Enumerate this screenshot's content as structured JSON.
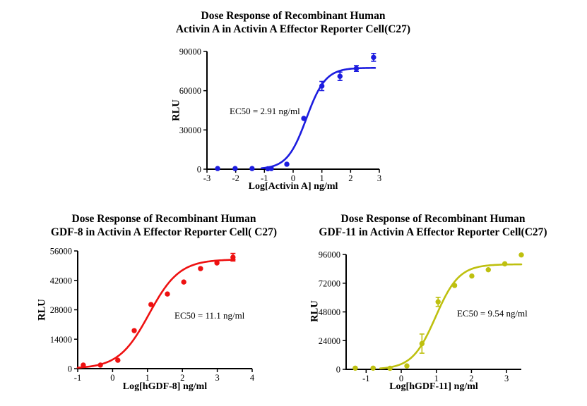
{
  "chart_data": [
    {
      "name": "activin-a",
      "type": "scatter",
      "title_line1": "Dose Response of Recombinant Human",
      "title_line2": "Activin A in Activin A Effector Reporter Cell(C27)",
      "xlabel": "Log[Activin A] ng/ml",
      "ylabel": "RLU",
      "ec50_label": "EC50 = 2.91 ng/ml",
      "ec50_value_ng_ml": 2.91,
      "color": "#1c1cdf",
      "grid": false,
      "x_range": [
        -3,
        3
      ],
      "x_ticks": [
        -3,
        -2,
        -1,
        0,
        1,
        2,
        3
      ],
      "y_range": [
        0,
        90000
      ],
      "y_ticks": [
        0,
        30000,
        60000,
        90000
      ],
      "points": [
        {
          "x": -2.63,
          "y": 500
        },
        {
          "x": -2.02,
          "y": 500
        },
        {
          "x": -1.43,
          "y": 500
        },
        {
          "x": -0.88,
          "y": 300
        },
        {
          "x": -0.76,
          "y": 500
        },
        {
          "x": -0.22,
          "y": 3800
        },
        {
          "x": 0.37,
          "y": 38800
        },
        {
          "x": 1.0,
          "y": 63600,
          "err": 3500
        },
        {
          "x": 1.63,
          "y": 71000,
          "err": 3200
        },
        {
          "x": 2.2,
          "y": 77000,
          "err": 2200
        },
        {
          "x": 2.8,
          "y": 85500,
          "err": 3000
        }
      ],
      "curve": {
        "bottom": 0,
        "top": 77500,
        "logec50": 0.46,
        "hill": 1.3,
        "x_start": -1.1,
        "x_end": 2.85
      }
    },
    {
      "name": "gdf-8",
      "type": "scatter",
      "title_line1": "Dose Response of Recombinant Human",
      "title_line2": "GDF-8 in Activin A Effector Reporter Cell( C27)",
      "xlabel": "Log[hGDF-8] ng/ml",
      "ylabel": "RLU",
      "ec50_label": "EC50 = 11.1 ng/ml",
      "ec50_value_ng_ml": 11.1,
      "color": "#ee1111",
      "grid": false,
      "x_range": [
        -1,
        4
      ],
      "x_ticks": [
        -1,
        0,
        1,
        2,
        3,
        4
      ],
      "y_range": [
        0,
        56000
      ],
      "y_ticks": [
        0,
        14000,
        28000,
        42000,
        56000
      ],
      "points": [
        {
          "x": -0.84,
          "y": 1700
        },
        {
          "x": -0.35,
          "y": 1700
        },
        {
          "x": 0.15,
          "y": 4000
        },
        {
          "x": 0.62,
          "y": 18100
        },
        {
          "x": 1.1,
          "y": 30500
        },
        {
          "x": 1.57,
          "y": 35500
        },
        {
          "x": 2.04,
          "y": 41200
        },
        {
          "x": 2.52,
          "y": 47600
        },
        {
          "x": 2.99,
          "y": 50300
        },
        {
          "x": 3.45,
          "y": 53000,
          "err": 1800
        }
      ],
      "curve": {
        "bottom": 0,
        "top": 52000,
        "logec50": 1.045,
        "hill": 1.0,
        "x_start": -1.0,
        "x_end": 3.5
      }
    },
    {
      "name": "gdf-11",
      "type": "scatter",
      "title_line1": "Dose Response of Recombinant Human",
      "title_line2": "GDF-11 in Activin A Effector Reporter Cell(C27)",
      "xlabel": "Log[hGDF-11] ng/ml",
      "ylabel": "RLU",
      "ec50_label": "EC50 = 9.54 ng/ml",
      "ec50_value_ng_ml": 9.54,
      "color": "#bec00f",
      "grid": false,
      "x_range": [
        -1.57,
        3.42
      ],
      "x_ticks": [
        -1,
        0,
        1,
        2,
        3
      ],
      "y_range": [
        0,
        96000
      ],
      "y_ticks": [
        0,
        24000,
        48000,
        72000,
        96000
      ],
      "points": [
        {
          "x": -1.31,
          "y": 1000
        },
        {
          "x": -0.8,
          "y": 1000
        },
        {
          "x": -0.32,
          "y": 900
        },
        {
          "x": 0.16,
          "y": 2900
        },
        {
          "x": 0.59,
          "y": 21500,
          "err": 8000
        },
        {
          "x": 1.05,
          "y": 56400,
          "err": 3800
        },
        {
          "x": 1.52,
          "y": 70100
        },
        {
          "x": 2.01,
          "y": 78000
        },
        {
          "x": 2.48,
          "y": 83200
        },
        {
          "x": 2.95,
          "y": 88200
        },
        {
          "x": 3.42,
          "y": 95600
        }
      ],
      "curve": {
        "bottom": 0,
        "top": 87800,
        "logec50": 0.98,
        "hill": 1.3,
        "x_start": -0.6,
        "x_end": 3.42
      }
    }
  ]
}
